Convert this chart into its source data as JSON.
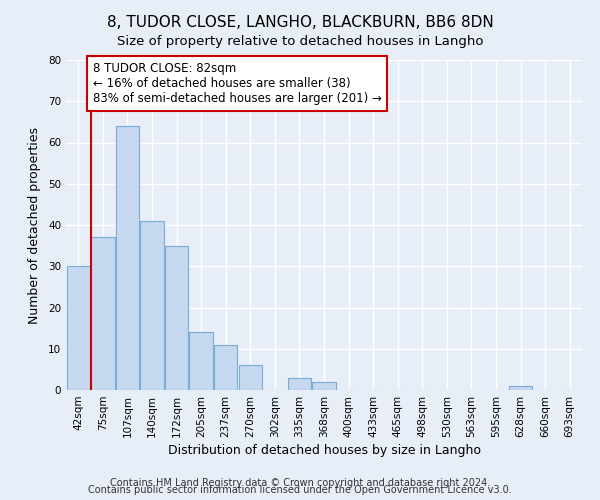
{
  "title": "8, TUDOR CLOSE, LANGHO, BLACKBURN, BB6 8DN",
  "subtitle": "Size of property relative to detached houses in Langho",
  "xlabel": "Distribution of detached houses by size in Langho",
  "ylabel": "Number of detached properties",
  "bar_labels": [
    "42sqm",
    "75sqm",
    "107sqm",
    "140sqm",
    "172sqm",
    "205sqm",
    "237sqm",
    "270sqm",
    "302sqm",
    "335sqm",
    "368sqm",
    "400sqm",
    "433sqm",
    "465sqm",
    "498sqm",
    "530sqm",
    "563sqm",
    "595sqm",
    "628sqm",
    "660sqm",
    "693sqm"
  ],
  "bar_values": [
    30,
    37,
    64,
    41,
    35,
    14,
    11,
    6,
    0,
    3,
    2,
    0,
    0,
    0,
    0,
    0,
    0,
    0,
    1,
    0,
    0
  ],
  "bar_color": "#c5d8ef",
  "bar_edge_color": "#7aadd4",
  "vline_color": "#cc0000",
  "annotation_text": "8 TUDOR CLOSE: 82sqm\n← 16% of detached houses are smaller (38)\n83% of semi-detached houses are larger (201) →",
  "annotation_box_facecolor": "#ffffff",
  "annotation_box_edgecolor": "#cc0000",
  "ylim": [
    0,
    80
  ],
  "yticks": [
    0,
    10,
    20,
    30,
    40,
    50,
    60,
    70,
    80
  ],
  "footer1": "Contains HM Land Registry data © Crown copyright and database right 2024.",
  "footer2": "Contains public sector information licensed under the Open Government Licence v3.0.",
  "background_color": "#e8eef8",
  "grid_color": "#ffffff",
  "title_fontsize": 11,
  "subtitle_fontsize": 9.5,
  "axis_label_fontsize": 9,
  "tick_fontsize": 7.5,
  "annotation_fontsize": 8.5,
  "footer_fontsize": 7
}
